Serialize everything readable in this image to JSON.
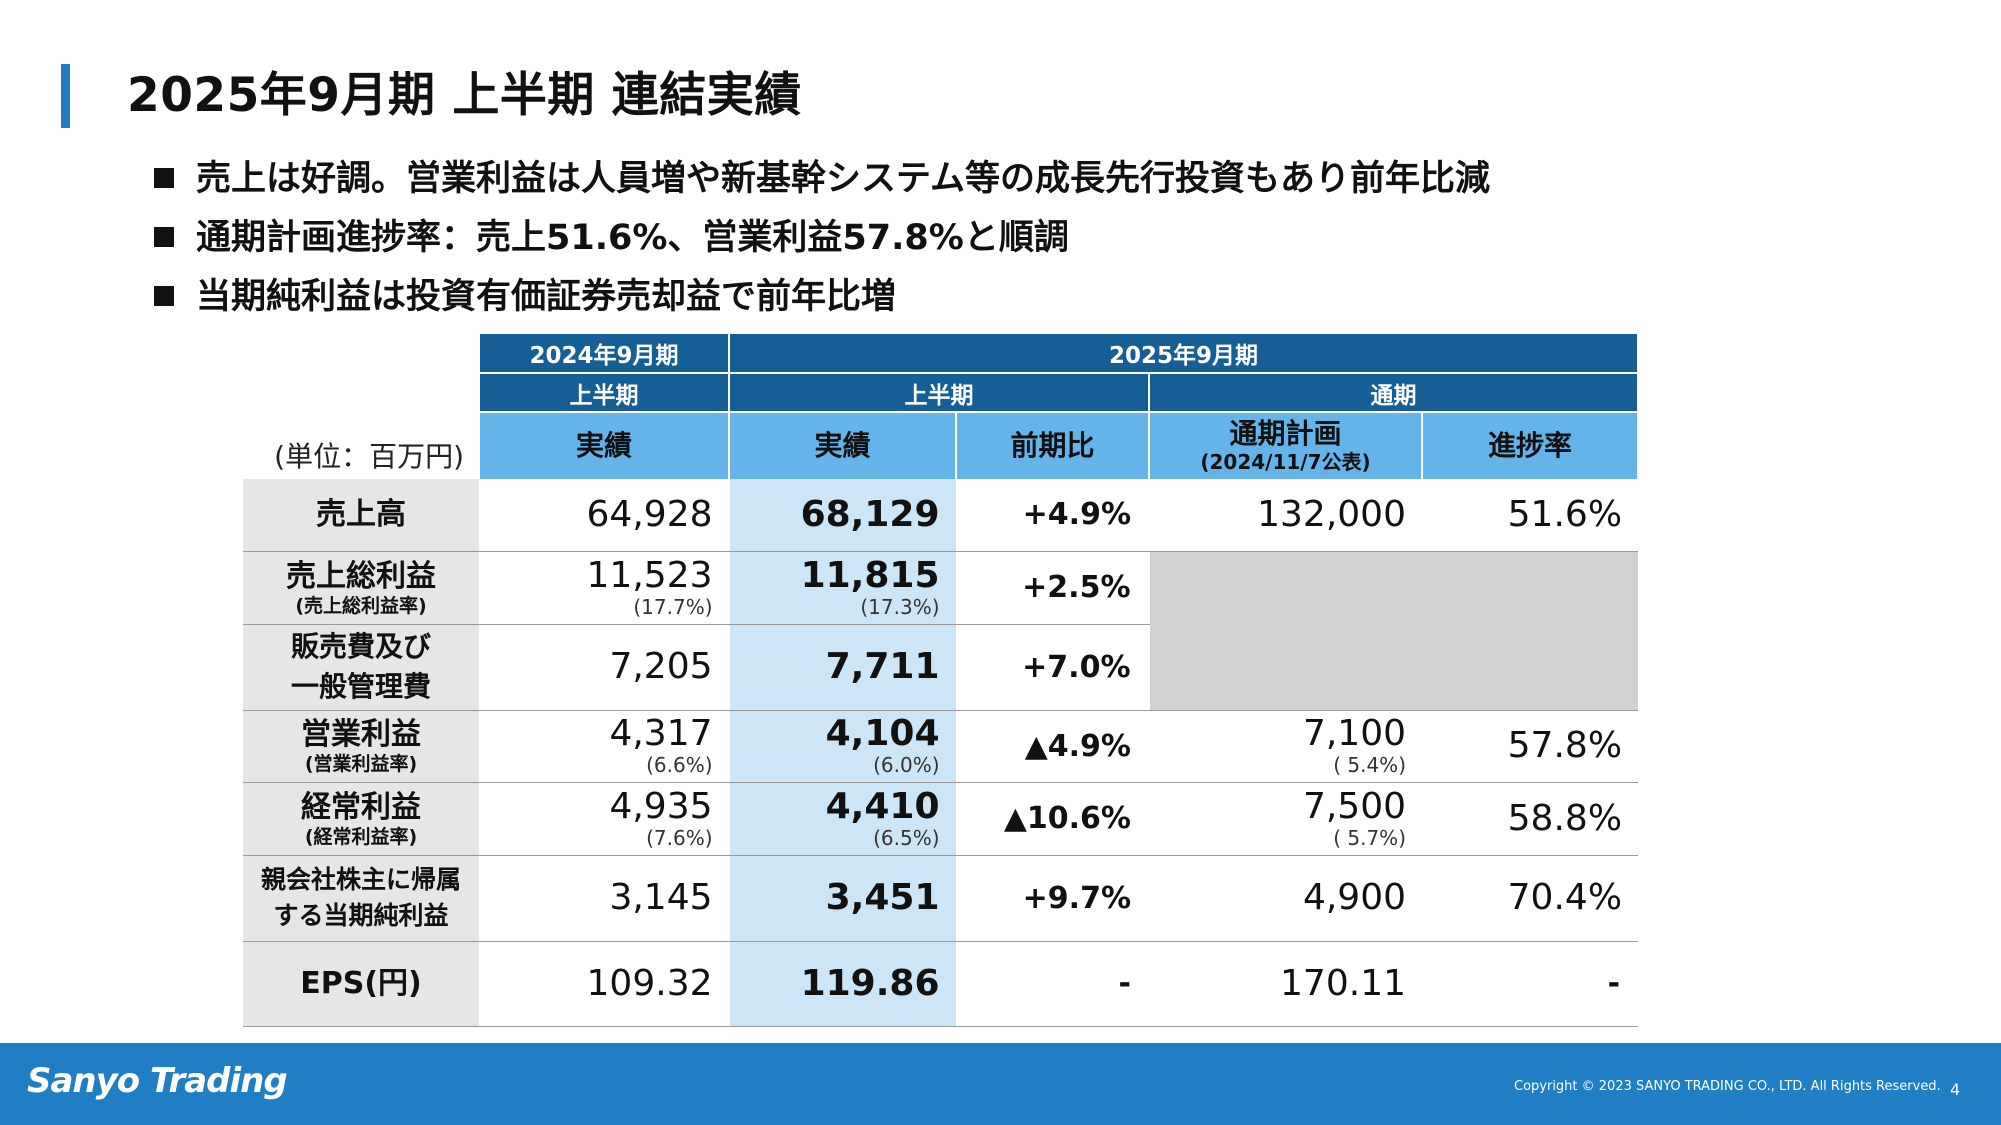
{
  "title": "2025年9月期 上半期 連結実績",
  "bullets": [
    "売上は好調。営業利益は人員増や新基幹システム等の成長先行投資もあり前年比減",
    "通期計画進捗率：売上51.6%、営業利益57.8%と順調",
    "当期純利益は投資有価証券売却益で前年比増"
  ],
  "table": {
    "unit": "(単位：百万円)",
    "head": {
      "prev_period": "2024年9月期",
      "curr_period": "2025年9月期",
      "half": "上半期",
      "full_year": "通期",
      "actual": "実績",
      "yoy": "前期比",
      "plan": "通期計画",
      "plan_note": "(2024/11/7公表)",
      "progress": "進捗率"
    },
    "rows": {
      "sales": {
        "label": "売上高",
        "prev": "64,928",
        "curr": "68,129",
        "yoy": "+4.9%",
        "plan": "132,000",
        "progress": "51.6%"
      },
      "gross": {
        "label": "売上総利益",
        "sub": "(売上総利益率)",
        "prev": "11,523",
        "prev_rate": "(17.7%)",
        "curr": "11,815",
        "curr_rate": "(17.3%)",
        "yoy": "+2.5%"
      },
      "sga": {
        "label1": "販売費及び",
        "label2": "一般管理費",
        "prev": "7,205",
        "curr": "7,711",
        "yoy": "+7.0%"
      },
      "op": {
        "label": "営業利益",
        "sub": "(営業利益率)",
        "prev": "4,317",
        "prev_rate": "(6.6%)",
        "curr": "4,104",
        "curr_rate": "(6.0%)",
        "yoy": "▲4.9%",
        "plan": "7,100",
        "plan_rate": "( 5.4%)",
        "progress": "57.8%"
      },
      "ord": {
        "label": "経常利益",
        "sub": "(経常利益率)",
        "prev": "4,935",
        "prev_rate": "(7.6%)",
        "curr": "4,410",
        "curr_rate": "(6.5%)",
        "yoy": "▲10.6%",
        "plan": "7,500",
        "plan_rate": "( 5.7%)",
        "progress": "58.8%"
      },
      "net": {
        "label1": "親会社株主に帰属",
        "label2": "する当期純利益",
        "prev": "3,145",
        "curr": "3,451",
        "yoy": "+9.7%",
        "plan": "4,900",
        "progress": "70.4%"
      },
      "eps": {
        "label": "EPS(円)",
        "prev": "109.32",
        "curr": "119.86",
        "yoy": "-",
        "plan": "170.11",
        "progress": "-"
      }
    }
  },
  "footer": {
    "logo": "Sanyo Trading",
    "copyright": "Copyright © 2023 SANYO TRADING CO., LTD. All Rights Reserved.",
    "page": "4"
  },
  "colors": {
    "accent": "#1e7bc4",
    "header_dark": "#155f96",
    "header_light": "#64b4ea",
    "current_col": "#cce6f7",
    "footer": "#1f7ec4"
  }
}
